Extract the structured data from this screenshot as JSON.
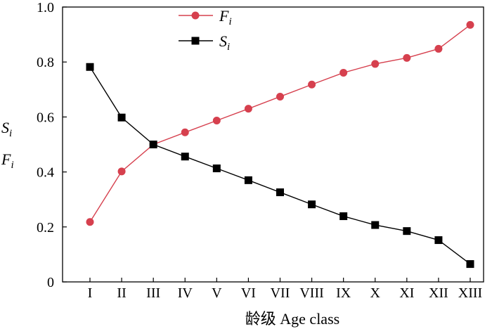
{
  "chart_data": {
    "type": "line",
    "categories": [
      "I",
      "II",
      "III",
      "IV",
      "V",
      "VI",
      "VII",
      "VIII",
      "IX",
      "X",
      "XI",
      "XII",
      "XIII"
    ],
    "xlabel": "龄级  Age class",
    "ylabel": [
      "S",
      "i",
      "F",
      "i"
    ],
    "ylim": [
      0,
      1.0
    ],
    "yticks": [
      "0",
      "0.2",
      "0.4",
      "0.6",
      "0.8",
      "1.0"
    ],
    "ytick_values": [
      0,
      0.2,
      0.4,
      0.6,
      0.8,
      1.0
    ],
    "grid": false,
    "legend_position": "top-center",
    "series": [
      {
        "name": "F",
        "subscript": "i",
        "color": "#d6404e",
        "marker": "circle",
        "values": [
          0.218,
          0.402,
          0.5,
          0.544,
          0.587,
          0.63,
          0.674,
          0.718,
          0.761,
          0.793,
          0.815,
          0.848,
          0.935
        ]
      },
      {
        "name": "S",
        "subscript": "i",
        "color": "#000000",
        "marker": "square",
        "values": [
          0.782,
          0.598,
          0.5,
          0.456,
          0.413,
          0.37,
          0.326,
          0.282,
          0.239,
          0.207,
          0.185,
          0.152,
          0.065
        ]
      }
    ]
  }
}
